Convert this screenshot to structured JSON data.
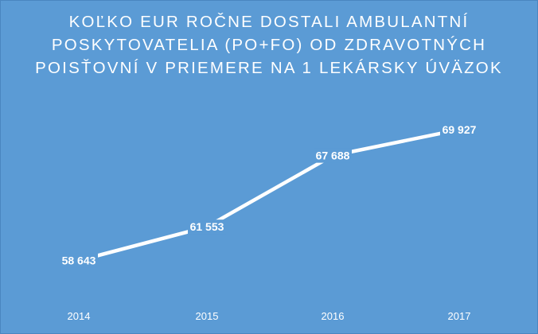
{
  "chart_data": {
    "type": "line",
    "title": "KOĽKO  EUR ROČNE DOSTALI AMBULANTNÍ\nPOSKYTOVATELIA  (PO+FO) OD ZDRAVOTNÝCH\nPOISŤOVNÍ V PRIEMERE  NA 1 LEKÁRSKY ÚVÄZOK",
    "categories": [
      "2014",
      "2015",
      "2016",
      "2017"
    ],
    "values": [
      58643,
      61553,
      67688,
      69927
    ],
    "data_labels": [
      "58 643",
      "61 553",
      "67 688",
      "69 927"
    ],
    "xlabel": "",
    "ylabel": "",
    "ylim": [
      53000,
      71500
    ],
    "grid": false,
    "drop_lines": true,
    "colors": {
      "background": "#5b9bd5",
      "line": "#ffffff",
      "text": "#ffffff"
    }
  }
}
